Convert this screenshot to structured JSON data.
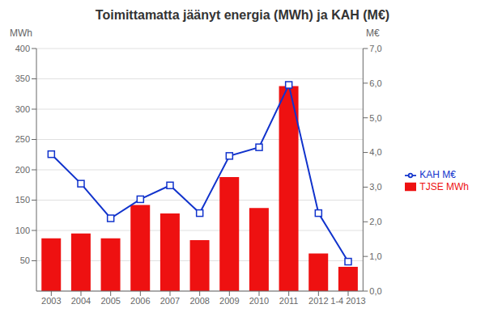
{
  "chart_data": {
    "type": "bar",
    "title": "Toimittamatta jäänyt energia (MWh) ja KAH (M€)",
    "ylabel": "MWh",
    "y2label": "M€",
    "categories": [
      "2003",
      "2004",
      "2005",
      "2006",
      "2007",
      "2008",
      "2009",
      "2010",
      "2011",
      "2012",
      "1-4 2013"
    ],
    "series": [
      {
        "name": "TJSE MWh",
        "type": "bar",
        "color": "#ee1111",
        "values": [
          87,
          95,
          87,
          142,
          128,
          84,
          188,
          137,
          338,
          62,
          40
        ]
      },
      {
        "name": "KAH M€",
        "type": "line",
        "axis": "y2",
        "color": "#1133cc",
        "marker": "square",
        "values": [
          3.95,
          3.1,
          2.1,
          2.65,
          3.05,
          2.25,
          3.9,
          4.15,
          5.95,
          2.25,
          0.85
        ]
      }
    ],
    "ylim": [
      0,
      400
    ],
    "yticks": [
      50,
      100,
      150,
      200,
      250,
      300,
      350,
      400
    ],
    "y2lim": [
      0,
      7.0
    ],
    "y2ticks": [
      {
        "value": 0,
        "label": "0,0"
      },
      {
        "value": 1,
        "label": "1,0"
      },
      {
        "value": 2,
        "label": "2,0"
      },
      {
        "value": 3,
        "label": "3,0"
      },
      {
        "value": 4,
        "label": "4,0"
      },
      {
        "value": 5,
        "label": "5,0"
      },
      {
        "value": 6,
        "label": "6,0"
      },
      {
        "value": 7,
        "label": "7,0"
      }
    ],
    "grid": true,
    "legend": "right"
  }
}
